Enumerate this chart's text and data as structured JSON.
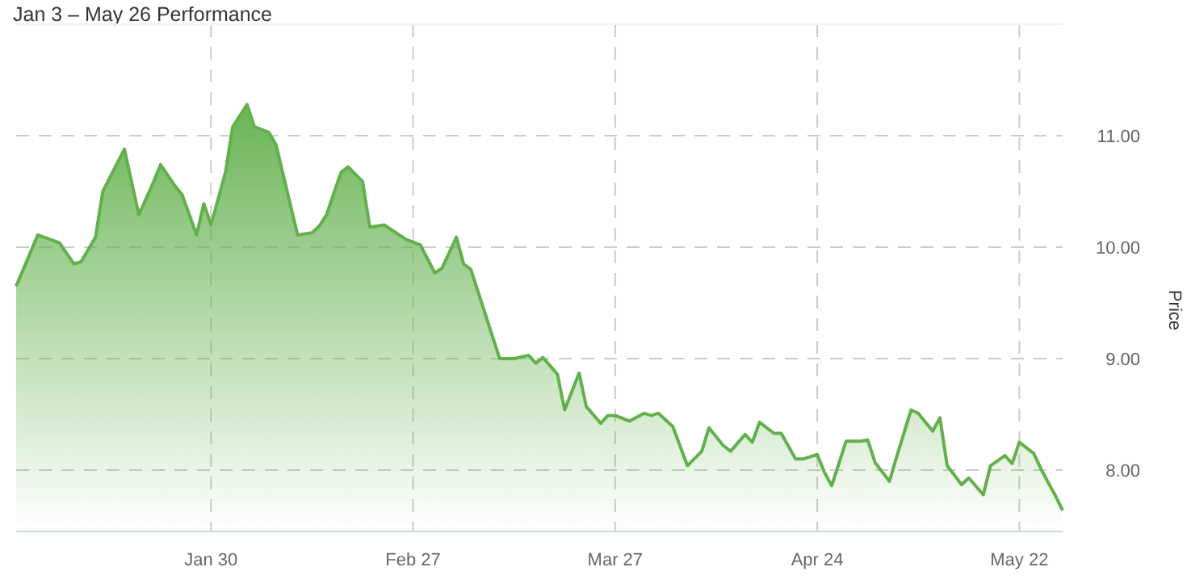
{
  "chart_data": {
    "type": "area",
    "title": "Jan 3 – May 26 Performance",
    "ylabel": "Price",
    "grid": true,
    "xlim": [
      "--01-03",
      "--05-28"
    ],
    "ylim": [
      7.45,
      12.0
    ],
    "xticks": [
      {
        "value": "--01-30",
        "label": "Jan 30"
      },
      {
        "value": "--02-27",
        "label": "Feb 27"
      },
      {
        "value": "--03-27",
        "label": "Mar 27"
      },
      {
        "value": "--04-24",
        "label": "Apr 24"
      },
      {
        "value": "--05-22",
        "label": "May 22"
      }
    ],
    "yticks": [
      {
        "value": 8,
        "label": "8.00"
      },
      {
        "value": 9,
        "label": "9.00"
      },
      {
        "value": 10,
        "label": "10.00"
      },
      {
        "value": 11,
        "label": "11.00"
      }
    ],
    "x": [
      "--01-03",
      "--01-06",
      "--01-09",
      "--01-11",
      "--01-12",
      "--01-14",
      "--01-15",
      "--01-18",
      "--01-20",
      "--01-22",
      "--01-23",
      "--01-25",
      "--01-26",
      "--01-28",
      "--01-29",
      "--01-30",
      "--02-01",
      "--02-02",
      "--02-04",
      "--02-05",
      "--02-07",
      "--02-08",
      "--02-09",
      "--02-11",
      "--02-13",
      "--02-14",
      "--02-15",
      "--02-17",
      "--02-18",
      "--02-20",
      "--02-21",
      "--02-23",
      "--02-26",
      "--02-28",
      "--03-02",
      "--03-03",
      "--03-05",
      "--03-06",
      "--03-07",
      "--03-11",
      "--03-13",
      "--03-15",
      "--03-16",
      "--03-17",
      "--03-19",
      "--03-20",
      "--03-22",
      "--03-23",
      "--03-25",
      "--03-26",
      "--03-27",
      "--03-29",
      "--03-31",
      "--04-01",
      "--04-02",
      "--04-04",
      "--04-06",
      "--04-08",
      "--04-09",
      "--04-11",
      "--04-12",
      "--04-14",
      "--04-15",
      "--04-16",
      "--04-18",
      "--04-19",
      "--04-21",
      "--04-22",
      "--04-24",
      "--04-25",
      "--04-26",
      "--04-28",
      "--04-30",
      "--05-01",
      "--05-02",
      "--05-04",
      "--05-05",
      "--05-07",
      "--05-08",
      "--05-10",
      "--05-11",
      "--05-12",
      "--05-14",
      "--05-15",
      "--05-17",
      "--05-18",
      "--05-20",
      "--05-21",
      "--05-22",
      "--05-24",
      "--05-25",
      "--05-27",
      "--05-28"
    ],
    "series": [
      {
        "color": "#62b04c",
        "values": [
          9.65,
          10.11,
          10.04,
          9.85,
          9.87,
          10.09,
          10.5,
          10.88,
          10.29,
          10.58,
          10.74,
          10.55,
          10.47,
          10.11,
          10.39,
          10.2,
          10.67,
          11.08,
          11.28,
          11.08,
          11.03,
          10.92,
          10.65,
          10.11,
          10.13,
          10.19,
          10.29,
          10.67,
          10.72,
          10.59,
          10.18,
          10.2,
          10.07,
          10.02,
          9.77,
          9.81,
          10.09,
          9.85,
          9.8,
          9.0,
          9.0,
          9.03,
          8.96,
          9.01,
          8.86,
          8.54,
          8.87,
          8.57,
          8.42,
          8.49,
          8.49,
          8.44,
          8.51,
          8.49,
          8.51,
          8.39,
          8.04,
          8.17,
          8.38,
          8.22,
          8.17,
          8.32,
          8.25,
          8.43,
          8.33,
          8.33,
          8.1,
          8.1,
          8.14,
          7.98,
          7.86,
          8.26,
          8.26,
          8.27,
          8.07,
          7.9,
          8.12,
          8.54,
          8.51,
          8.35,
          8.47,
          8.04,
          7.87,
          7.93,
          7.78,
          8.04,
          8.13,
          8.06,
          8.25,
          8.15,
          8.01,
          7.77,
          7.64
        ]
      }
    ]
  }
}
